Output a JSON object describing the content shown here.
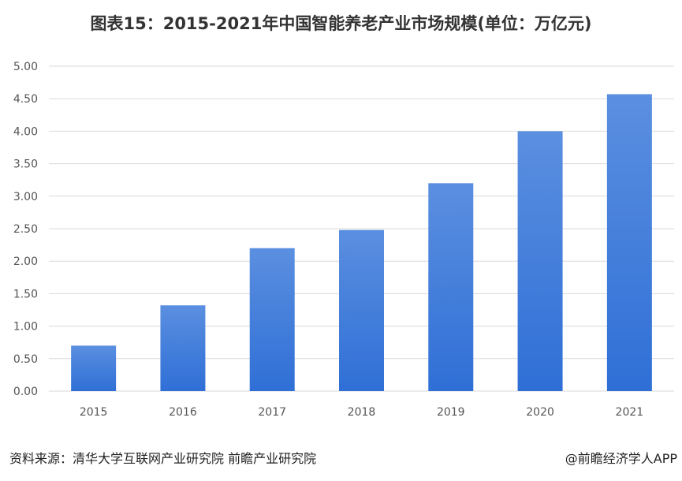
{
  "chart_data": {
    "type": "bar",
    "title": "图表15：2015-2021年中国智能养老产业市场规模(单位：万亿元)",
    "categories": [
      "2015",
      "2016",
      "2017",
      "2018",
      "2019",
      "2020",
      "2021"
    ],
    "values": [
      0.7,
      1.32,
      2.2,
      2.48,
      3.2,
      4.0,
      4.57
    ],
    "ylim": [
      0,
      5
    ],
    "ytick_labels": [
      "0.00",
      "0.50",
      "1.00",
      "1.50",
      "2.00",
      "2.50",
      "3.00",
      "3.50",
      "4.00",
      "4.50",
      "5.00"
    ],
    "grid": true,
    "legend": "none",
    "bar_color_top": "#5b8fe0",
    "bar_color_bottom": "#2f6fd6",
    "gridline_color": "#d9d9d9"
  },
  "footer": {
    "source": "资料来源：清华大学互联网产业研究院 前瞻产业研究院",
    "credit": "@前瞻经济学人APP"
  }
}
